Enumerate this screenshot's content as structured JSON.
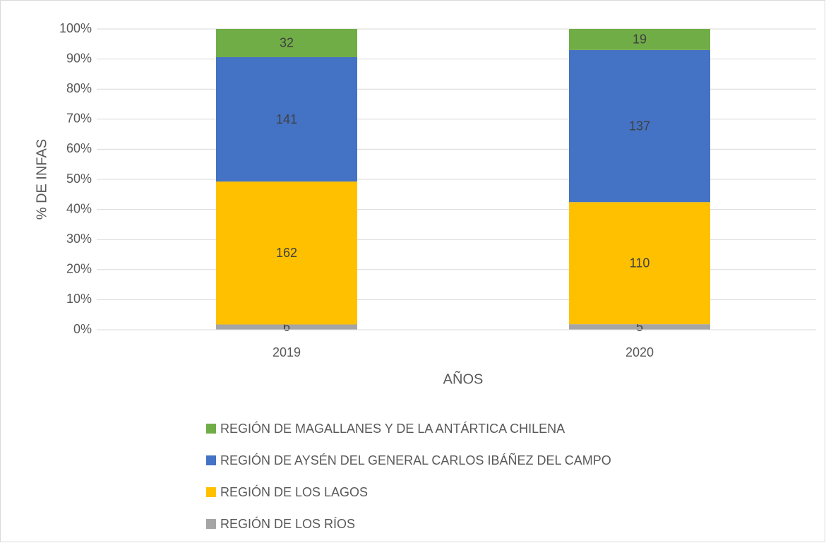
{
  "chart_data": {
    "type": "bar",
    "stacking": "percent",
    "x_label": "AÑOS",
    "y_label": "% DE INFAS",
    "categories": [
      "2019",
      "2020"
    ],
    "series": [
      {
        "name": "REGIÓN DE LOS RÍOS",
        "color": "#a5a5a5",
        "values": [
          6,
          5
        ]
      },
      {
        "name": "REGIÓN DE LOS LAGOS",
        "color": "#ffc000",
        "values": [
          162,
          110
        ]
      },
      {
        "name": "REGIÓN DE AYSÉN DEL GENERAL CARLOS IBÁÑEZ DEL CAMPO",
        "color": "#4472c4",
        "values": [
          141,
          137
        ]
      },
      {
        "name": "REGIÓN DE MAGALLANES Y DE LA ANTÁRTICA CHILENA",
        "color": "#70ad47",
        "values": [
          32,
          19
        ]
      }
    ],
    "ylim": [
      0,
      100
    ],
    "yticks": [
      {
        "value": 0,
        "label": "0%"
      },
      {
        "value": 10,
        "label": "10%"
      },
      {
        "value": 20,
        "label": "20%"
      },
      {
        "value": 30,
        "label": "30%"
      },
      {
        "value": 40,
        "label": "40%"
      },
      {
        "value": 50,
        "label": "50%"
      },
      {
        "value": 60,
        "label": "60%"
      },
      {
        "value": 70,
        "label": "70%"
      },
      {
        "value": 80,
        "label": "80%"
      },
      {
        "value": 90,
        "label": "90%"
      },
      {
        "value": 100,
        "label": "100%"
      }
    ],
    "grid": true,
    "legend": "bottom"
  }
}
